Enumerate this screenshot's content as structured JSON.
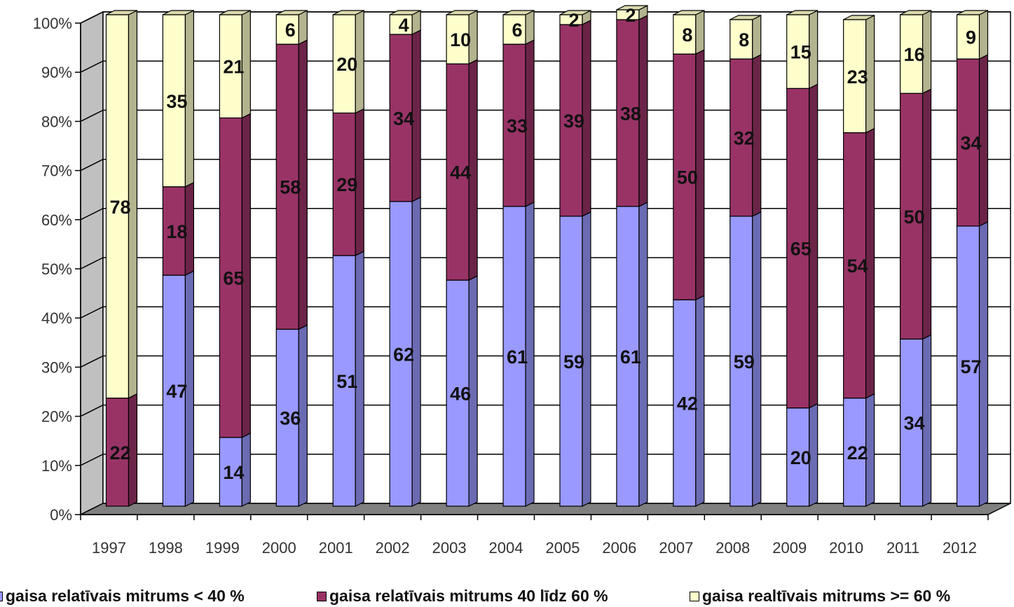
{
  "chart_data": {
    "type": "bar",
    "stacked": true,
    "percent_stacked": true,
    "three_d": true,
    "categories": [
      "1997",
      "1998",
      "1999",
      "2000",
      "2001",
      "2002",
      "2003",
      "2004",
      "2005",
      "2006",
      "2007",
      "2008",
      "2009",
      "2010",
      "2011",
      "2012"
    ],
    "series": [
      {
        "name": "gaisa relatīvais mitrums < 40 %",
        "color": "#9999ff",
        "values": [
          0,
          47,
          14,
          36,
          51,
          62,
          46,
          61,
          59,
          61,
          42,
          59,
          20,
          22,
          34,
          57
        ],
        "labels": [
          "",
          "47",
          "14",
          "36",
          "51",
          "62",
          "46",
          "61",
          "59",
          "61",
          "42",
          "59",
          "20",
          "22",
          "34",
          "57"
        ]
      },
      {
        "name": "gaisa relatīvais mitrums 40 līdz 60 %",
        "color": "#993366",
        "values": [
          22,
          18,
          65,
          58,
          29,
          34,
          44,
          33,
          39,
          38,
          50,
          32,
          65,
          54,
          50,
          34
        ],
        "labels": [
          "22",
          "18",
          "65",
          "58",
          "29",
          "34",
          "44",
          "33",
          "39",
          "38",
          "50",
          "32",
          "65",
          "54",
          "50",
          "34"
        ]
      },
      {
        "name": "gaisa realtīvais mitrums >= 60 %",
        "color": "#ffffcc",
        "values": [
          78,
          35,
          21,
          6,
          20,
          4,
          10,
          6,
          2,
          2,
          8,
          8,
          15,
          23,
          16,
          9
        ],
        "labels": [
          "78",
          "35",
          "21",
          "6",
          "20",
          "4",
          "10",
          "6",
          "2",
          "2",
          "8",
          "8",
          "15",
          "23",
          "16",
          "9"
        ]
      }
    ],
    "y_ticks": [
      "0%",
      "10%",
      "20%",
      "30%",
      "40%",
      "50%",
      "60%",
      "70%",
      "80%",
      "90%",
      "100%"
    ],
    "ylim": [
      0,
      100
    ],
    "grid": true,
    "legend_position": "bottom",
    "wall_color": "#c0c0c0",
    "floor_color": "#808080"
  },
  "legend": {
    "items": [
      {
        "label": "gaisa relatīvais mitrums < 40 %",
        "color": "#9999ff"
      },
      {
        "label": "gaisa relatīvais mitrums 40 līdz 60 %",
        "color": "#993366"
      },
      {
        "label": "gaisa realtīvais mitrums >= 60 %",
        "color": "#ffffcc"
      }
    ]
  }
}
